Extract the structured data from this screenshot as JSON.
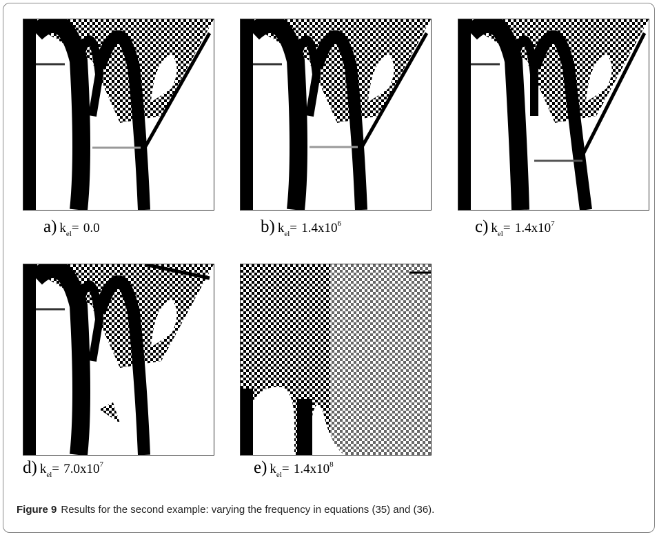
{
  "figure": {
    "label": "Figure 9",
    "caption": "Results for the second example: varying the frequency in equations (35) and (36)."
  },
  "panels": [
    {
      "letter": "a)",
      "symbol": "k",
      "subscript": "el",
      "equals": "=",
      "mantissa": "0.0"
    },
    {
      "letter": "b)",
      "symbol": "k",
      "subscript": "el",
      "equals": "=",
      "mantissa": "1.4x10",
      "exponent": "6"
    },
    {
      "letter": "c)",
      "symbol": "k",
      "subscript": "el",
      "equals": "=",
      "mantissa": "1.4x10",
      "exponent": "7"
    },
    {
      "letter": "d)",
      "symbol": "k",
      "subscript": "el",
      "equals": "=",
      "mantissa": "7.0x10",
      "exponent": "7"
    },
    {
      "letter": "e)",
      "symbol": "k",
      "subscript": "el",
      "equals": "=",
      "mantissa": "1.4x10",
      "exponent": "8"
    }
  ]
}
